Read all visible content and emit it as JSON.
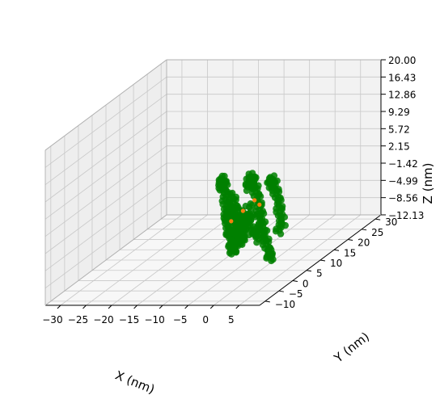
{
  "chart_data": {
    "type": "scatter",
    "projection": "3d",
    "title": "",
    "xlabel": "X (nm)",
    "ylabel": "Y (nm)",
    "zlabel": "Z (nm)",
    "xlim": [
      -33,
      9
    ],
    "ylim": [
      -12,
      32
    ],
    "zlim": [
      -12.13,
      20.0
    ],
    "x_ticks": [
      "−30",
      "−25",
      "−20",
      "−15",
      "−10",
      "−5",
      "0",
      "5"
    ],
    "y_ticks": [
      "−10",
      "−5",
      "0",
      "5",
      "10",
      "15",
      "20",
      "25",
      "30"
    ],
    "z_ticks": [
      "−12.13",
      "−8.56",
      "−4.99",
      "−1.42",
      "2.15",
      "5.72",
      "9.29",
      "12.86",
      "16.43",
      "20.00"
    ],
    "grid": true,
    "legend": "none",
    "series": [
      {
        "color": "#008000",
        "marker": "o",
        "description_points": "dense cluster of green points forming a chain-like structure",
        "points": [
          [
            -14.5,
            18.0,
            -0.5
          ],
          [
            -14.0,
            17.0,
            0.5
          ],
          [
            -13.5,
            16.0,
            1.5
          ],
          [
            -13.0,
            15.5,
            2.2
          ],
          [
            -12.5,
            15.0,
            1.0
          ],
          [
            -12.0,
            14.0,
            0.0
          ],
          [
            -11.5,
            13.5,
            -1.0
          ],
          [
            -11.0,
            13.0,
            -2.0
          ],
          [
            -10.5,
            12.0,
            -3.0
          ],
          [
            -10.0,
            11.5,
            -4.0
          ],
          [
            -9.5,
            11.0,
            -5.0
          ],
          [
            -9.0,
            10.0,
            -6.0
          ],
          [
            -8.5,
            9.5,
            -6.5
          ],
          [
            -8.0,
            9.0,
            -7.0
          ],
          [
            -7.5,
            8.0,
            -7.5
          ],
          [
            -7.0,
            7.5,
            -8.0
          ],
          [
            -6.5,
            7.0,
            -8.2
          ],
          [
            -6.0,
            6.0,
            -8.5
          ],
          [
            -5.5,
            5.5,
            -8.0
          ],
          [
            -5.0,
            5.0,
            -7.5
          ],
          [
            -12.0,
            17.0,
            -2.0
          ],
          [
            -11.5,
            16.5,
            -3.0
          ],
          [
            -11.0,
            16.0,
            -4.0
          ],
          [
            -10.5,
            15.0,
            -5.0
          ],
          [
            -10.0,
            14.5,
            -6.0
          ],
          [
            -9.5,
            14.0,
            -6.5
          ],
          [
            -9.0,
            13.0,
            -7.0
          ],
          [
            -8.5,
            12.5,
            -7.5
          ],
          [
            -8.0,
            12.0,
            -8.0
          ],
          [
            -7.5,
            11.0,
            -8.2
          ],
          [
            -7.0,
            10.5,
            -8.5
          ],
          [
            -6.5,
            10.0,
            -8.0
          ],
          [
            -6.0,
            9.0,
            -7.0
          ],
          [
            -5.5,
            8.5,
            -6.0
          ],
          [
            -5.0,
            8.0,
            -5.0
          ],
          [
            -4.5,
            7.0,
            -4.0
          ],
          [
            -4.0,
            6.5,
            -3.0
          ],
          [
            -3.5,
            6.0,
            -2.0
          ],
          [
            -3.0,
            5.0,
            -1.5
          ],
          [
            -2.5,
            4.5,
            -1.0
          ],
          [
            -9.0,
            17.0,
            0.0
          ],
          [
            -8.5,
            16.5,
            1.0
          ],
          [
            -8.0,
            16.0,
            2.0
          ],
          [
            -7.5,
            15.5,
            2.8
          ],
          [
            -7.0,
            15.0,
            3.0
          ],
          [
            -6.5,
            14.5,
            2.5
          ],
          [
            -6.0,
            14.0,
            1.5
          ],
          [
            -5.5,
            13.5,
            0.5
          ],
          [
            -5.0,
            13.0,
            -0.5
          ],
          [
            -4.5,
            12.5,
            -1.5
          ],
          [
            -4.0,
            12.0,
            -2.5
          ],
          [
            -3.5,
            11.5,
            -3.5
          ],
          [
            -3.0,
            11.0,
            -4.5
          ],
          [
            -2.5,
            10.5,
            -5.5
          ],
          [
            -2.0,
            10.0,
            -6.5
          ],
          [
            -1.5,
            9.5,
            -7.5
          ],
          [
            -1.0,
            9.0,
            -8.5
          ],
          [
            -0.5,
            8.5,
            -9.5
          ],
          [
            0.0,
            8.0,
            -10.0
          ],
          [
            0.5,
            7.5,
            -10.5
          ],
          [
            -4.0,
            16.0,
            1.0
          ],
          [
            -3.5,
            15.5,
            2.0
          ],
          [
            -3.0,
            15.0,
            2.5
          ],
          [
            -2.5,
            14.5,
            2.0
          ],
          [
            -2.0,
            14.0,
            1.0
          ],
          [
            -1.5,
            13.5,
            0.0
          ],
          [
            -1.0,
            13.0,
            -1.0
          ],
          [
            -0.5,
            12.5,
            -2.0
          ],
          [
            0.0,
            12.0,
            -3.0
          ],
          [
            0.5,
            11.5,
            -4.0
          ],
          [
            1.0,
            11.0,
            -5.0
          ],
          [
            1.0,
            10.0,
            -6.0
          ],
          [
            -8.0,
            10.0,
            -4.0
          ],
          [
            -7.0,
            11.0,
            -3.0
          ],
          [
            -6.0,
            12.0,
            -2.0
          ],
          [
            -5.0,
            11.0,
            -3.5
          ],
          [
            -7.5,
            13.0,
            -4.5
          ],
          [
            -6.5,
            12.5,
            -5.5
          ],
          [
            -9.5,
            12.5,
            -2.5
          ],
          [
            -10.5,
            13.5,
            -3.5
          ],
          [
            -3.0,
            9.0,
            -6.0
          ],
          [
            -2.0,
            8.0,
            -7.0
          ],
          [
            -4.0,
            9.5,
            -6.5
          ],
          [
            -3.5,
            10.0,
            -5.5
          ]
        ]
      },
      {
        "color": "#ff7f0e",
        "marker": "o",
        "points": [
          [
            -7.5,
            12.5,
            -3.0
          ],
          [
            -5.5,
            13.0,
            -1.0
          ],
          [
            -4.0,
            12.0,
            -1.5
          ],
          [
            -9.0,
            11.0,
            -4.5
          ]
        ]
      }
    ]
  }
}
